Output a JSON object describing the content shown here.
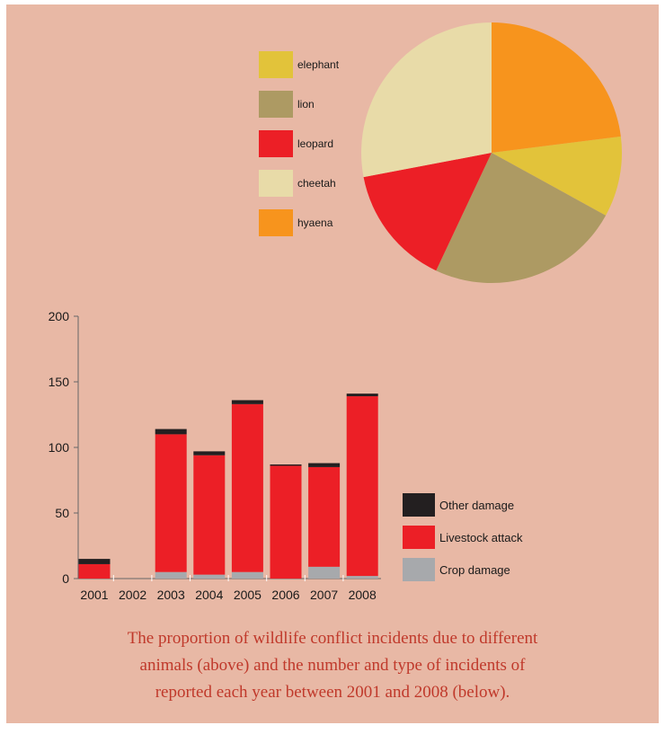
{
  "chart_data": [
    {
      "type": "pie",
      "labels": [
        "elephant",
        "lion",
        "leopard",
        "cheetah",
        "hyaena"
      ],
      "values": [
        10,
        24,
        15,
        28,
        23
      ],
      "colors": [
        "#e2c33a",
        "#ad9a63",
        "#ec1f26",
        "#e8dba8",
        "#f7941d"
      ],
      "legend_placement": "left"
    },
    {
      "type": "bar",
      "stacked": true,
      "categories": [
        "2001",
        "2002",
        "2003",
        "2004",
        "2005",
        "2006",
        "2007",
        "2008"
      ],
      "series": [
        {
          "name": "Crop damage",
          "color": "#a7a9ac",
          "values": [
            0,
            0,
            5,
            3,
            5,
            0,
            9,
            2
          ]
        },
        {
          "name": "Livestock attack",
          "color": "#ec1f26",
          "values": [
            11,
            0,
            105,
            91,
            128,
            86,
            76,
            137
          ]
        },
        {
          "name": "Other damage",
          "color": "#231f20",
          "values": [
            4,
            0,
            4,
            3,
            3,
            1,
            3,
            2
          ]
        }
      ],
      "y_ticks": [
        0,
        50,
        100,
        150,
        200
      ],
      "ylim": [
        0,
        200
      ],
      "legend_order": [
        "Other damage",
        "Livestock attack",
        "Crop damage"
      ],
      "legend_placement": "right"
    }
  ],
  "caption": [
    "The proportion of wildlife conflict incidents due to different",
    "animals (above) and the number and type of incidents of",
    "reported each year between 2001 and 2008 (below)."
  ]
}
